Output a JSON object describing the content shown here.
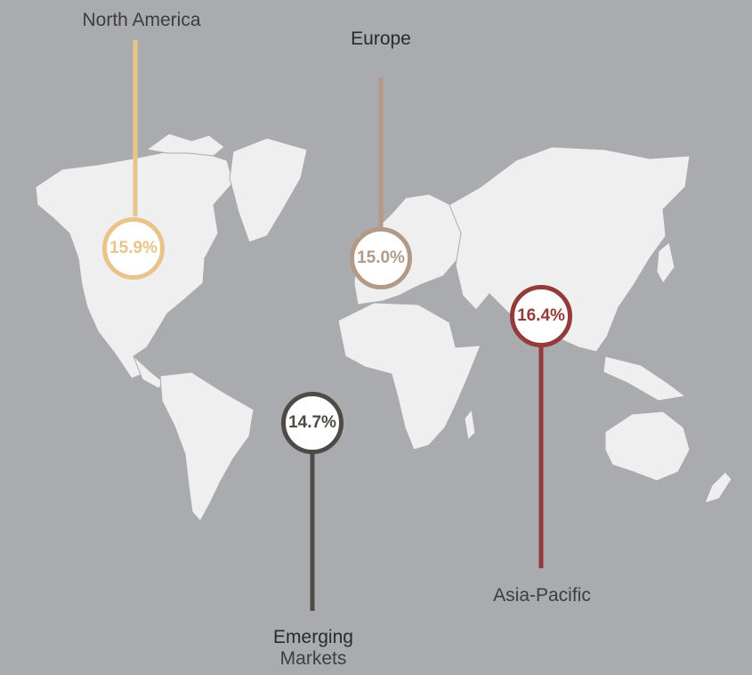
{
  "regions": [
    {
      "name": "North America",
      "value": "15.9%",
      "color": "#e8c48a"
    },
    {
      "name": "Europe",
      "value": "15.0%",
      "color": "#b39a86"
    },
    {
      "name": "Asia-Pacific",
      "value": "16.4%",
      "color": "#933a3a"
    },
    {
      "name_line1": "Emerging",
      "name_line2": "Markets",
      "value": "14.7%",
      "color": "#4e4a45"
    }
  ]
}
